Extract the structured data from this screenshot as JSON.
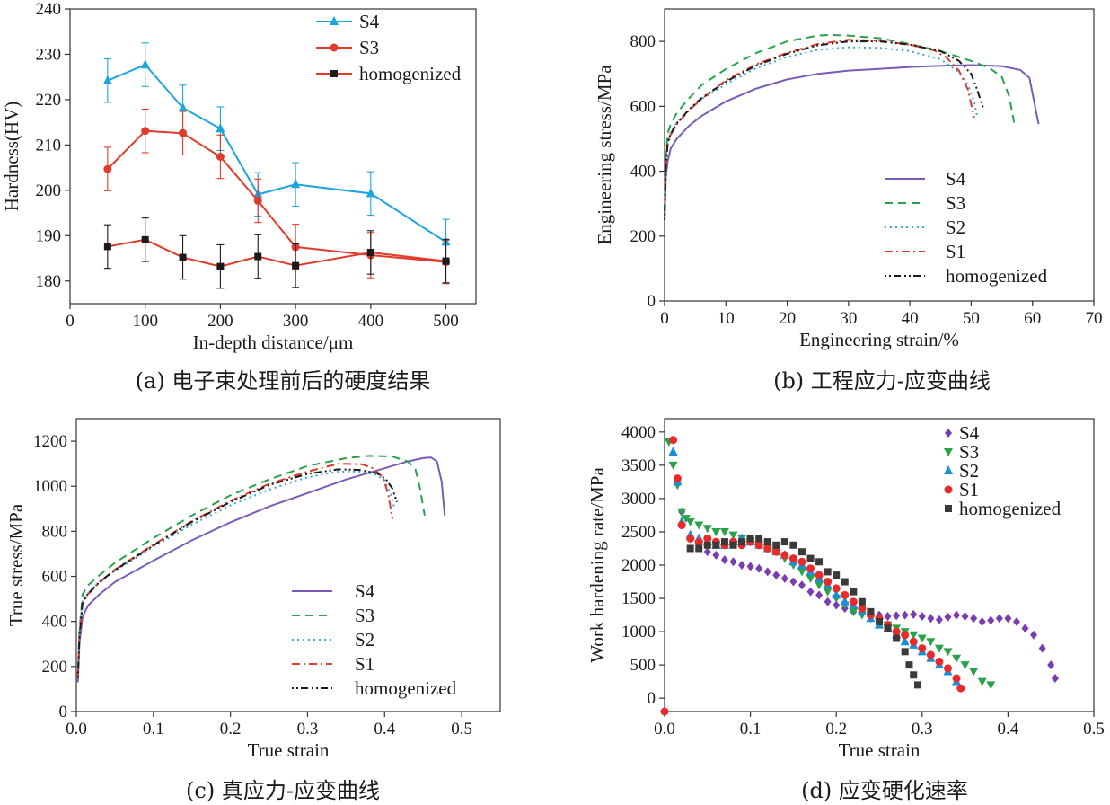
{
  "chart_data": [
    {
      "id": "a",
      "type": "line",
      "caption": "(a) 电子束处理前后的硬度结果",
      "xlabel": "In-depth distance/μm",
      "ylabel": "Hardness(HV)",
      "xlim": [
        0,
        540
      ],
      "ylim": [
        175,
        240
      ],
      "xticks": [
        0,
        100,
        200,
        300,
        400,
        500
      ],
      "yticks": [
        180,
        190,
        200,
        210,
        220,
        230,
        240
      ],
      "legend_position": "top-right",
      "series": [
        {
          "name": "S4",
          "color": "#1aa6dc",
          "marker": "triangle",
          "x": [
            50,
            100,
            150,
            200,
            250,
            300,
            400,
            500
          ],
          "y": [
            224.2,
            227.7,
            218.2,
            213.6,
            199.1,
            201.3,
            199.3,
            188.6
          ],
          "err": [
            4.8,
            4.8,
            5.0,
            4.8,
            4.8,
            4.8,
            4.8,
            5.0
          ]
        },
        {
          "name": "S3",
          "color": "#e03a2a",
          "marker": "circle",
          "x": [
            50,
            100,
            150,
            200,
            250,
            300,
            400,
            500
          ],
          "y": [
            204.7,
            213.1,
            212.6,
            207.4,
            197.7,
            187.5,
            185.7,
            184.2
          ],
          "err": [
            4.8,
            4.8,
            4.8,
            4.8,
            4.8,
            5.0,
            5.0,
            4.8
          ]
        },
        {
          "name": "homogenized",
          "color": "#1a1a1a",
          "line_color": "#e03a2a",
          "marker": "square",
          "x": [
            50,
            100,
            150,
            200,
            250,
            300,
            400,
            500
          ],
          "y": [
            187.6,
            189.1,
            185.2,
            183.2,
            185.4,
            183.4,
            186.3,
            184.4
          ],
          "err": [
            4.8,
            4.8,
            4.8,
            4.8,
            4.8,
            4.8,
            4.8,
            4.8
          ]
        }
      ]
    },
    {
      "id": "b",
      "type": "line",
      "caption": "(b) 工程应力-应变曲线",
      "xlabel": "Engineering strain/%",
      "ylabel": "Engineering stress/MPa",
      "xlim": [
        0,
        70
      ],
      "ylim": [
        0,
        900
      ],
      "xticks": [
        0,
        10,
        20,
        30,
        40,
        50,
        60,
        70
      ],
      "yticks": [
        0,
        200,
        400,
        600,
        800
      ],
      "legend_position": "bottom-right",
      "series": [
        {
          "name": "S4",
          "color": "#7a5cb8",
          "dash": "none",
          "x": [
            0,
            0.2,
            0.5,
            1,
            2,
            4,
            6,
            10,
            15,
            20,
            25,
            30,
            35,
            40,
            45,
            50,
            55,
            58,
            59.5,
            60.3,
            61
          ],
          "y": [
            250,
            380,
            430,
            470,
            500,
            540,
            570,
            615,
            655,
            683,
            700,
            710,
            715,
            721,
            725,
            727,
            724,
            712,
            688,
            610,
            545
          ]
        },
        {
          "name": "S3",
          "color": "#2aa24a",
          "dash": "9 6",
          "x": [
            0,
            0.2,
            0.5,
            1,
            2,
            4,
            6,
            10,
            15,
            20,
            25,
            27,
            30,
            35,
            40,
            45,
            50,
            53,
            55,
            56.2,
            57
          ],
          "y": [
            270,
            440,
            515,
            545,
            580,
            625,
            665,
            715,
            765,
            800,
            818,
            820,
            818,
            810,
            792,
            770,
            740,
            718,
            690,
            630,
            550
          ]
        },
        {
          "name": "S2",
          "color": "#33a8e0",
          "dash": "2 4",
          "x": [
            0,
            0.2,
            0.5,
            1,
            2,
            4,
            6,
            10,
            15,
            20,
            25,
            30,
            35,
            40,
            45,
            48,
            49.5,
            50.5,
            51
          ],
          "y": [
            250,
            420,
            490,
            520,
            550,
            590,
            622,
            668,
            718,
            752,
            774,
            782,
            780,
            770,
            745,
            705,
            665,
            615,
            565
          ]
        },
        {
          "name": "S1",
          "color": "#e03a2a",
          "dash": "9 4 2 4",
          "x": [
            0,
            0.2,
            0.5,
            1,
            2,
            4,
            6,
            10,
            15,
            20,
            25,
            30,
            35,
            40,
            44,
            46,
            48,
            49.5,
            50.5
          ],
          "y": [
            250,
            410,
            480,
            512,
            545,
            588,
            622,
            680,
            730,
            765,
            792,
            805,
            802,
            790,
            772,
            750,
            710,
            650,
            565
          ]
        },
        {
          "name": "homogenized",
          "color": "#1a1a1a",
          "dash": "2 3 2 3 8 4",
          "x": [
            0,
            0.2,
            0.5,
            1,
            2,
            4,
            6,
            10,
            15,
            20,
            25,
            30,
            35,
            40,
            45,
            48,
            50,
            51,
            52
          ],
          "y": [
            250,
            415,
            488,
            515,
            548,
            590,
            625,
            676,
            726,
            762,
            788,
            800,
            800,
            790,
            770,
            740,
            700,
            650,
            592
          ]
        }
      ]
    },
    {
      "id": "c",
      "type": "line",
      "caption": "(c) 真应力-应变曲线",
      "xlabel": "True strain",
      "ylabel": "True stress/MPa",
      "xlim": [
        0,
        0.55
      ],
      "ylim": [
        0,
        1300
      ],
      "xticks": [
        0.0,
        0.1,
        0.2,
        0.3,
        0.4,
        0.5
      ],
      "xtick_labels": [
        "0.0",
        "0.1",
        "0.2",
        "0.3",
        "0.4",
        "0.5"
      ],
      "yticks": [
        0,
        200,
        400,
        600,
        800,
        1000,
        1200
      ],
      "legend_position": "bottom-right",
      "series": [
        {
          "name": "S4",
          "color": "#7a5cb8",
          "dash": "none",
          "x": [
            0.002,
            0.004,
            0.008,
            0.015,
            0.03,
            0.05,
            0.1,
            0.15,
            0.2,
            0.25,
            0.3,
            0.35,
            0.4,
            0.43,
            0.45,
            0.46,
            0.468,
            0.474,
            0.478
          ],
          "y": [
            130,
            300,
            420,
            470,
            520,
            575,
            670,
            760,
            840,
            910,
            970,
            1030,
            1080,
            1110,
            1125,
            1128,
            1110,
            1020,
            870
          ]
        },
        {
          "name": "S3",
          "color": "#2aa24a",
          "dash": "9 6",
          "x": [
            0.002,
            0.004,
            0.008,
            0.015,
            0.03,
            0.05,
            0.1,
            0.15,
            0.2,
            0.25,
            0.3,
            0.35,
            0.38,
            0.41,
            0.43,
            0.44,
            0.446,
            0.452
          ],
          "y": [
            150,
            350,
            520,
            560,
            605,
            660,
            770,
            870,
            960,
            1030,
            1090,
            1125,
            1135,
            1132,
            1110,
            1075,
            990,
            870
          ]
        },
        {
          "name": "S2",
          "color": "#33a8e0",
          "dash": "2 4",
          "x": [
            0.002,
            0.004,
            0.008,
            0.015,
            0.03,
            0.05,
            0.1,
            0.15,
            0.2,
            0.25,
            0.3,
            0.34,
            0.37,
            0.39,
            0.4,
            0.408,
            0.413
          ],
          "y": [
            150,
            330,
            490,
            525,
            575,
            625,
            730,
            830,
            915,
            985,
            1040,
            1065,
            1065,
            1050,
            1025,
            965,
            900
          ]
        },
        {
          "name": "S1",
          "color": "#e03a2a",
          "dash": "9 4 2 4",
          "x": [
            0.002,
            0.004,
            0.008,
            0.015,
            0.03,
            0.05,
            0.1,
            0.15,
            0.2,
            0.25,
            0.3,
            0.34,
            0.37,
            0.385,
            0.398,
            0.405,
            0.41
          ],
          "y": [
            150,
            330,
            480,
            520,
            572,
            630,
            740,
            845,
            935,
            1010,
            1065,
            1100,
            1098,
            1080,
            1040,
            960,
            855
          ]
        },
        {
          "name": "homogenized",
          "color": "#1a1a1a",
          "dash": "2 3 2 3 8 4",
          "x": [
            0.002,
            0.004,
            0.008,
            0.015,
            0.03,
            0.05,
            0.1,
            0.15,
            0.2,
            0.25,
            0.3,
            0.34,
            0.37,
            0.39,
            0.402,
            0.41,
            0.416
          ],
          "y": [
            150,
            330,
            485,
            522,
            575,
            628,
            737,
            842,
            930,
            1005,
            1055,
            1075,
            1072,
            1058,
            1030,
            990,
            930
          ]
        }
      ]
    },
    {
      "id": "d",
      "type": "scatter",
      "caption": "(d) 应变硬化速率",
      "xlabel": "True strain",
      "ylabel": "Work hardening rate/MPa",
      "xlim": [
        0,
        0.5
      ],
      "ylim": [
        -200,
        4200
      ],
      "xticks": [
        0.0,
        0.1,
        0.2,
        0.3,
        0.4,
        0.5
      ],
      "xtick_labels": [
        "0.0",
        "0.1",
        "0.2",
        "0.3",
        "0.4",
        "0.5"
      ],
      "yticks": [
        0,
        500,
        1000,
        1500,
        2000,
        2500,
        3000,
        3500,
        4000
      ],
      "legend_position": "top-right",
      "series": [
        {
          "name": "S4",
          "color": "#7a3cb0",
          "marker": "diamond",
          "x": [
            0.02,
            0.03,
            0.04,
            0.05,
            0.06,
            0.07,
            0.08,
            0.09,
            0.1,
            0.11,
            0.12,
            0.13,
            0.14,
            0.15,
            0.16,
            0.17,
            0.18,
            0.19,
            0.2,
            0.21,
            0.22,
            0.23,
            0.24,
            0.25,
            0.26,
            0.27,
            0.28,
            0.29,
            0.3,
            0.31,
            0.32,
            0.33,
            0.34,
            0.35,
            0.36,
            0.37,
            0.38,
            0.39,
            0.4,
            0.41,
            0.42,
            0.43,
            0.44,
            0.45,
            0.455
          ],
          "y": [
            2800,
            2400,
            2300,
            2200,
            2150,
            2080,
            2050,
            2000,
            1980,
            1950,
            1900,
            1850,
            1800,
            1750,
            1700,
            1600,
            1550,
            1450,
            1400,
            1350,
            1300,
            1300,
            1250,
            1250,
            1230,
            1240,
            1250,
            1260,
            1230,
            1200,
            1180,
            1220,
            1250,
            1230,
            1200,
            1150,
            1170,
            1200,
            1200,
            1150,
            1050,
            950,
            750,
            500,
            300
          ]
        },
        {
          "name": "S3",
          "color": "#2aa24a",
          "marker": "triangle-down",
          "x": [
            0.005,
            0.01,
            0.015,
            0.02,
            0.025,
            0.03,
            0.04,
            0.05,
            0.06,
            0.07,
            0.08,
            0.09,
            0.1,
            0.11,
            0.12,
            0.13,
            0.14,
            0.15,
            0.16,
            0.17,
            0.18,
            0.19,
            0.2,
            0.21,
            0.22,
            0.23,
            0.24,
            0.25,
            0.26,
            0.27,
            0.28,
            0.29,
            0.3,
            0.31,
            0.32,
            0.33,
            0.34,
            0.35,
            0.36,
            0.37,
            0.38
          ],
          "y": [
            3850,
            3500,
            3200,
            2800,
            2700,
            2650,
            2600,
            2550,
            2500,
            2500,
            2450,
            2400,
            2350,
            2300,
            2250,
            2200,
            2100,
            2000,
            1900,
            1800,
            1700,
            1600,
            1500,
            1400,
            1300,
            1250,
            1200,
            1150,
            1100,
            1050,
            1000,
            950,
            900,
            850,
            750,
            700,
            600,
            500,
            400,
            250,
            200
          ]
        },
        {
          "name": "S2",
          "color": "#1a8fd6",
          "marker": "triangle",
          "x": [
            0.01,
            0.015,
            0.02,
            0.03,
            0.04,
            0.05,
            0.06,
            0.07,
            0.08,
            0.09,
            0.1,
            0.11,
            0.12,
            0.13,
            0.14,
            0.15,
            0.16,
            0.17,
            0.18,
            0.19,
            0.2,
            0.21,
            0.22,
            0.23,
            0.24,
            0.25,
            0.26,
            0.27,
            0.28,
            0.29,
            0.3,
            0.31,
            0.32,
            0.33,
            0.34
          ],
          "y": [
            3700,
            3250,
            2650,
            2450,
            2400,
            2350,
            2300,
            2300,
            2350,
            2400,
            2350,
            2300,
            2250,
            2200,
            2150,
            2050,
            2000,
            1900,
            1800,
            1700,
            1550,
            1450,
            1400,
            1300,
            1200,
            1100,
            1050,
            950,
            850,
            800,
            700,
            600,
            500,
            400,
            250
          ]
        },
        {
          "name": "S1",
          "color": "#e82a2a",
          "marker": "circle",
          "x": [
            0.0,
            0.01,
            0.015,
            0.02,
            0.03,
            0.04,
            0.05,
            0.06,
            0.07,
            0.08,
            0.09,
            0.1,
            0.11,
            0.12,
            0.13,
            0.14,
            0.15,
            0.16,
            0.17,
            0.18,
            0.19,
            0.2,
            0.21,
            0.22,
            0.23,
            0.24,
            0.25,
            0.26,
            0.27,
            0.28,
            0.29,
            0.3,
            0.31,
            0.32,
            0.33,
            0.34,
            0.345
          ],
          "y": [
            -200,
            3880,
            3300,
            2600,
            2400,
            2350,
            2400,
            2350,
            2300,
            2350,
            2300,
            2350,
            2300,
            2250,
            2200,
            2150,
            2100,
            2050,
            1950,
            1850,
            1750,
            1650,
            1550,
            1450,
            1350,
            1250,
            1200,
            1100,
            1000,
            950,
            850,
            750,
            650,
            550,
            450,
            300,
            150
          ]
        },
        {
          "name": "homogenized",
          "color": "#3a3a3a",
          "marker": "square",
          "x": [
            0.03,
            0.04,
            0.05,
            0.06,
            0.07,
            0.08,
            0.09,
            0.1,
            0.11,
            0.12,
            0.13,
            0.14,
            0.15,
            0.16,
            0.17,
            0.18,
            0.19,
            0.2,
            0.21,
            0.22,
            0.23,
            0.24,
            0.25,
            0.26,
            0.27,
            0.28,
            0.285,
            0.29,
            0.295
          ],
          "y": [
            2250,
            2250,
            2300,
            2300,
            2350,
            2300,
            2350,
            2400,
            2400,
            2350,
            2300,
            2350,
            2300,
            2200,
            2100,
            2050,
            1900,
            1850,
            1750,
            1600,
            1450,
            1300,
            1150,
            1050,
            900,
            700,
            500,
            350,
            200
          ]
        }
      ]
    }
  ]
}
